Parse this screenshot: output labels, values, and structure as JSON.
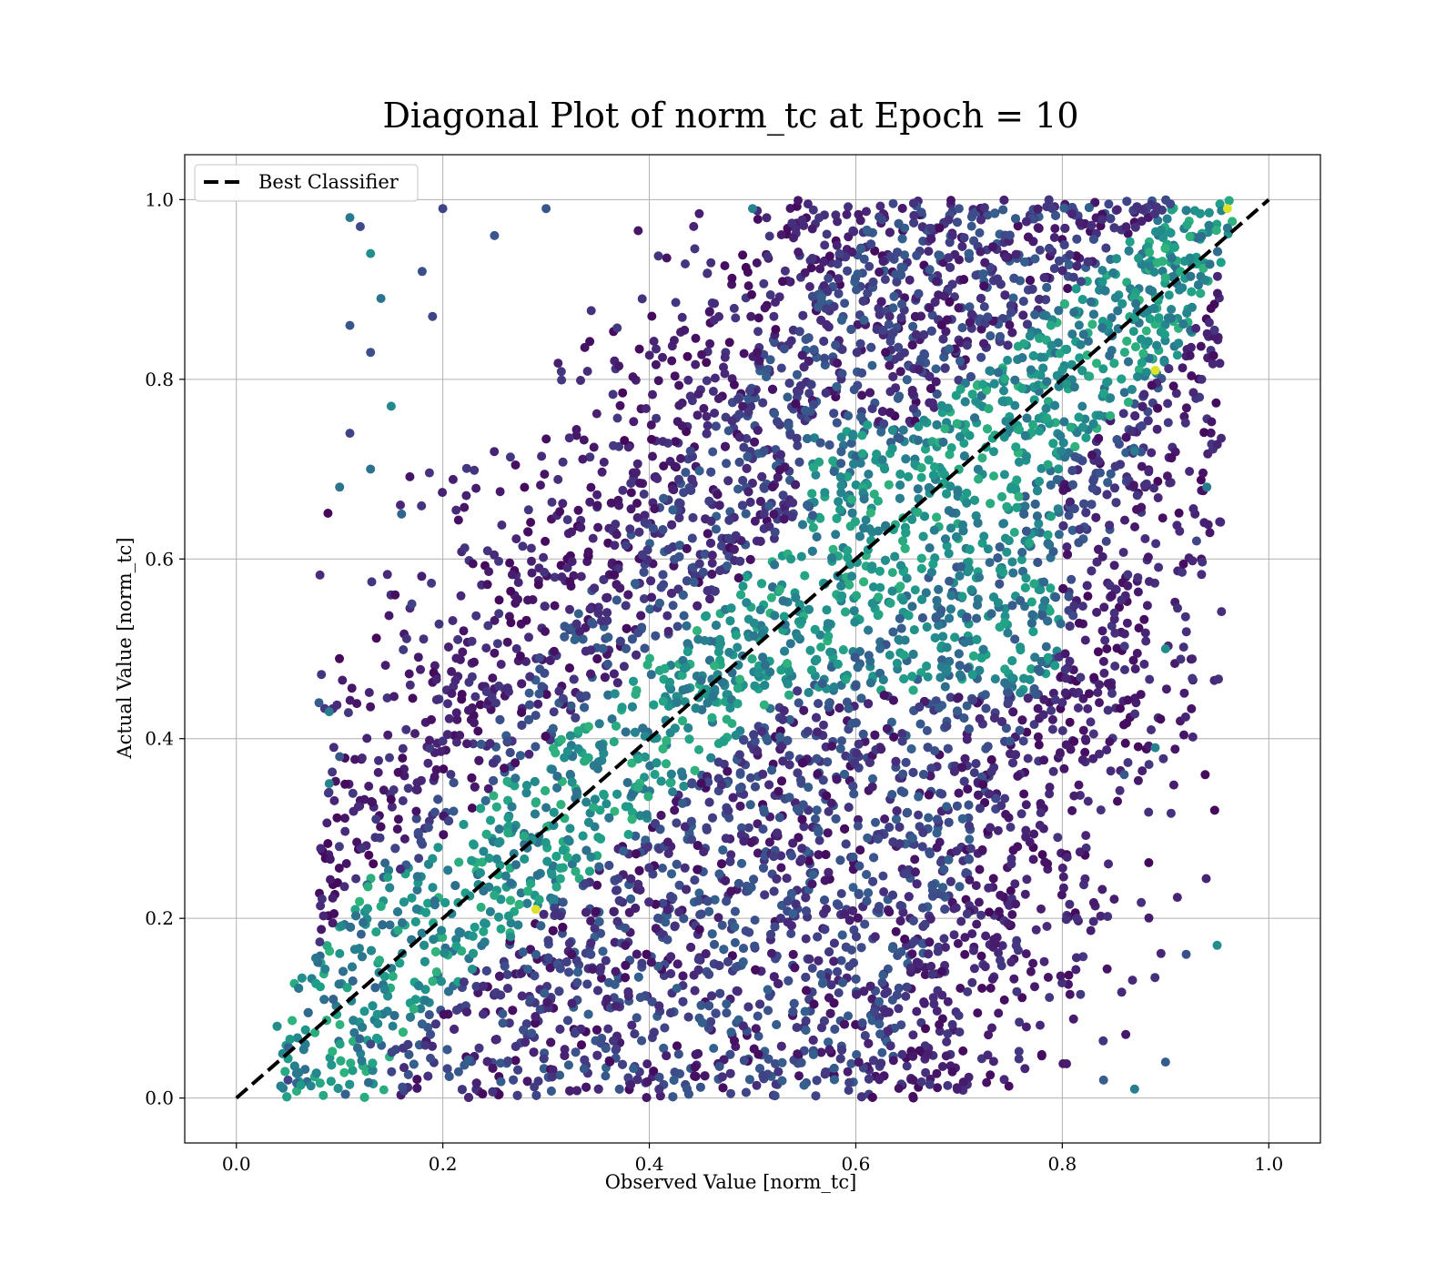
{
  "chart_data": {
    "type": "scatter",
    "title": "Diagonal Plot of norm_tc at Epoch = 10",
    "xlabel": "Observed Value [norm_tc]",
    "ylabel": "Actual Value [norm_tc]",
    "xlim": [
      -0.05,
      1.05
    ],
    "ylim": [
      -0.05,
      1.05
    ],
    "xticks": [
      0.0,
      0.2,
      0.4,
      0.6,
      0.8,
      1.0
    ],
    "yticks": [
      0.0,
      0.2,
      0.4,
      0.6,
      0.8,
      1.0
    ],
    "xtick_labels": [
      "0.0",
      "0.2",
      "0.4",
      "0.6",
      "0.8",
      "1.0"
    ],
    "ytick_labels": [
      "0.0",
      "0.2",
      "0.4",
      "0.6",
      "0.8",
      "1.0"
    ],
    "grid": true,
    "legend": {
      "placement": "upper-left",
      "entries": [
        "Best Classifier"
      ]
    },
    "colormap": "viridis",
    "reference_line": {
      "label": "Best Classifier",
      "x": [
        0.0,
        1.0
      ],
      "y": [
        0.0,
        1.0
      ],
      "color": "#000000",
      "style": "dashed"
    },
    "series": [
      {
        "color_by": "density (viridis)",
        "approx_point_count": 20000,
        "points": [
          [
            0.11,
            0.98
          ],
          [
            0.12,
            0.97
          ],
          [
            0.13,
            0.94
          ],
          [
            0.11,
            0.86
          ],
          [
            0.13,
            0.83
          ],
          [
            0.14,
            0.89
          ],
          [
            0.1,
            0.68
          ],
          [
            0.11,
            0.74
          ],
          [
            0.13,
            0.7
          ],
          [
            0.15,
            0.77
          ],
          [
            0.16,
            0.65
          ],
          [
            0.2,
            0.99
          ],
          [
            0.18,
            0.92
          ],
          [
            0.19,
            0.87
          ],
          [
            0.17,
            0.55
          ],
          [
            0.08,
            0.44
          ],
          [
            0.09,
            0.43
          ],
          [
            0.1,
            0.38
          ],
          [
            0.09,
            0.35
          ],
          [
            0.29,
            0.21
          ],
          [
            0.05,
            0.02
          ],
          [
            0.13,
            0.06
          ],
          [
            0.89,
            0.81
          ],
          [
            0.87,
            0.72
          ],
          [
            0.95,
            0.17
          ],
          [
            0.92,
            0.16
          ],
          [
            0.9,
            0.04
          ],
          [
            0.87,
            0.01
          ],
          [
            0.89,
            0.39
          ],
          [
            0.94,
            0.68
          ],
          [
            0.93,
            0.62
          ],
          [
            0.9,
            0.5
          ],
          [
            0.86,
            0.36
          ],
          [
            0.84,
            0.02
          ],
          [
            0.96,
            0.99
          ],
          [
            0.3,
            0.99
          ],
          [
            0.25,
            0.96
          ],
          [
            0.5,
            0.99
          ],
          [
            0.7,
            0.99
          ]
        ]
      }
    ]
  }
}
